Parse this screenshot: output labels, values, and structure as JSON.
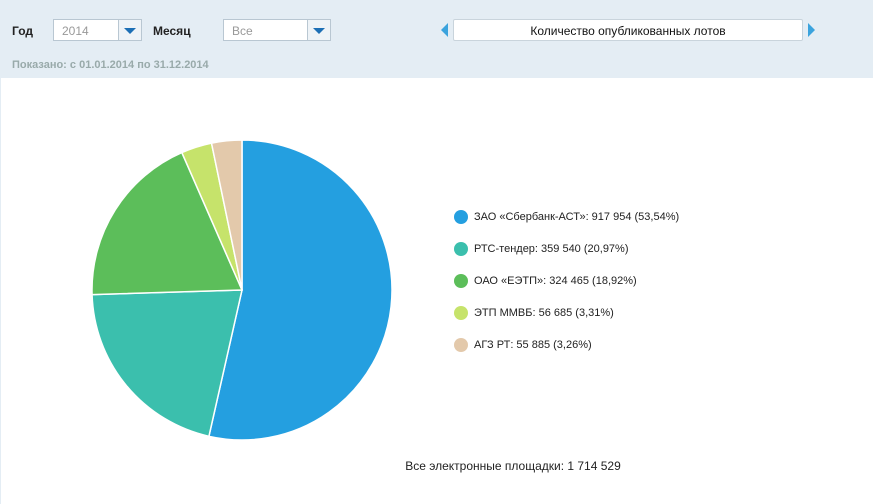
{
  "filters": {
    "year_label": "Год",
    "year_value": "2014",
    "month_label": "Месяц",
    "month_value": "Все",
    "tab_title": "Количество опубликованных лотов",
    "period": "Показано: с 01.01.2014 по 31.12.2014"
  },
  "chart_data": {
    "type": "pie",
    "labels": [
      "ЗАО «Сбербанк-АСТ»: 917 954 (53,54%)",
      "РТС-тендер: 359 540 (20,97%)",
      "ОАО «ЕЭТП»: 324 465 (18,92%)",
      "ЭТП ММВБ: 56 685 (3,31%)",
      "АГЗ РТ: 55 885 (3,26%)"
    ],
    "values": [
      917954,
      359540,
      324465,
      56685,
      55885
    ],
    "colors": [
      "#249fe0",
      "#3bbfad",
      "#5cbe5a",
      "#c6e36b",
      "#e3c9ab"
    ],
    "total_label": "Все электронные площадки: 1 714 529"
  }
}
